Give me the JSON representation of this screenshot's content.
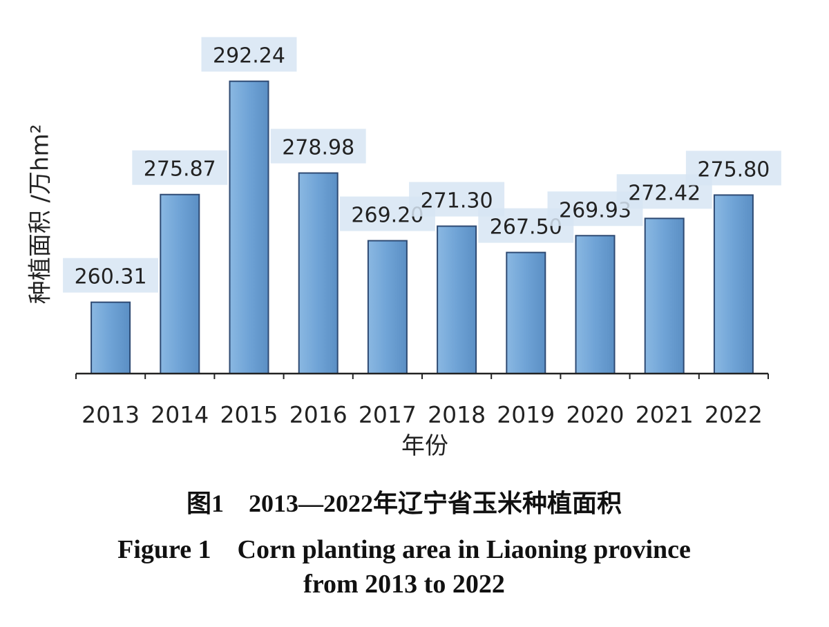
{
  "figure": {
    "caption_cn": "图1　2013—2022年辽宁省玉米种植面积",
    "caption_en_line1": "Figure 1　Corn planting area in Liaoning province",
    "caption_en_line2": "from 2013 to 2022"
  },
  "chart_data": {
    "type": "bar",
    "title": "",
    "xlabel": "年份",
    "ylabel": "种植面积 /万hm²",
    "categories": [
      "2013",
      "2014",
      "2015",
      "2016",
      "2017",
      "2018",
      "2019",
      "2020",
      "2021",
      "2022"
    ],
    "values": [
      260.31,
      275.87,
      292.24,
      278.98,
      269.2,
      271.3,
      267.5,
      269.93,
      272.42,
      275.8
    ],
    "data_labels": [
      "260.31",
      "275.87",
      "292.24",
      "278.98",
      "269.20",
      "271.30",
      "267.50",
      "269.93",
      "272.42",
      "275.80"
    ],
    "ylim": [
      250,
      295
    ],
    "grid": false,
    "bar_color": "#6fa3d6",
    "bar_edge_color": "#2e4a73",
    "label_box_color": "#d7e5f3"
  }
}
